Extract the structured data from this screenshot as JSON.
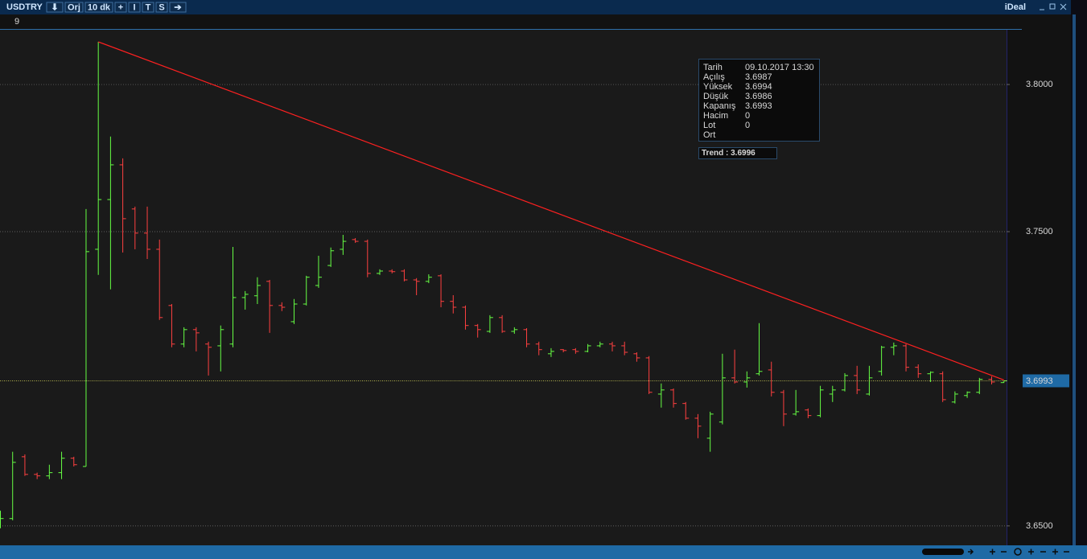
{
  "toolbar": {
    "symbol": "USDTRY",
    "buttons": [
      "⬇",
      "Orj",
      "10 dk",
      "+",
      "I",
      "T",
      "S",
      "➔"
    ],
    "broker": "iDeal"
  },
  "panel": "9",
  "tooltip": [
    {
      "label": "Tarih",
      "value": "09.10.2017 13:30"
    },
    {
      "label": "Açılış",
      "value": "3.6987"
    },
    {
      "label": "Yüksek",
      "value": "3.6994",
      "color": "#44ff44"
    },
    {
      "label": "Düşük",
      "value": "3.6986",
      "color": "#ff4040"
    },
    {
      "label": "Kapanış",
      "value": "3.6993"
    },
    {
      "label": "Hacim",
      "value": "0"
    },
    {
      "label": "Lot",
      "value": "0"
    },
    {
      "label": "Ort"
    }
  ],
  "chart_data": {
    "type": "ohlc",
    "up_color": "#66ff44",
    "down_color": "#ff4040",
    "ylim": [
      3.6434,
      3.8186
    ],
    "yticks": [
      {
        "value": 3.65,
        "label": "3.6500"
      },
      {
        "value": 3.75,
        "label": "3.7500"
      },
      {
        "value": 3.8,
        "label": "3.8000"
      }
    ],
    "grid": true,
    "open": [
      3.6511,
      3.6525,
      3.6735,
      3.6675,
      3.667,
      3.6681,
      3.673,
      3.6702,
      3.744,
      3.7609,
      3.7727,
      3.7577,
      3.7495,
      3.744,
      3.7249,
      3.7118,
      3.7167,
      3.7118,
      3.7112,
      3.7118,
      3.7276,
      3.7282,
      3.7331,
      3.7249,
      3.7194,
      3.7254,
      3.7317,
      3.7385,
      3.744,
      3.7473,
      3.7467,
      3.7358,
      3.7366,
      3.7366,
      3.7336,
      3.7331,
      3.735,
      3.7263,
      3.7243,
      3.7181,
      3.7161,
      3.7208,
      3.7161,
      3.7167,
      3.7118,
      3.7085,
      3.7099,
      3.7099,
      3.7093,
      3.7112,
      3.7118,
      3.7112,
      3.7085,
      3.7071,
      3.6948,
      3.6962,
      3.6916,
      3.6866,
      3.6798,
      3.6853,
      3.7003,
      3.6989,
      3.7017,
      3.703,
      3.6954,
      3.688,
      3.6894,
      3.6875,
      3.6948,
      3.6962,
      3.7011,
      3.6948,
      3.7025,
      3.7107,
      3.7112,
      3.7039,
      3.7017,
      3.7017,
      3.6921,
      3.6943,
      3.6954,
      3.6998,
      3.6987
    ],
    "high": [
      3.6552,
      3.6752,
      3.6743,
      3.6681,
      3.6708,
      3.6752,
      3.6735,
      3.7577,
      3.8145,
      3.7823,
      3.7749,
      3.7585,
      3.7585,
      3.7473,
      3.7254,
      3.7175,
      3.7175,
      3.7126,
      3.7181,
      3.7448,
      3.7298,
      3.7345,
      3.7336,
      3.726,
      3.7271,
      3.735,
      3.7418,
      3.7446,
      3.7489,
      3.7478,
      3.7473,
      3.7372,
      3.7372,
      3.7372,
      3.7342,
      3.7355,
      3.7355,
      3.7284,
      3.7249,
      3.7186,
      3.7216,
      3.7216,
      3.7175,
      3.7172,
      3.7126,
      3.7104,
      3.7101,
      3.7104,
      3.7118,
      3.7126,
      3.7126,
      3.7126,
      3.709,
      3.7077,
      3.6984,
      3.6967,
      3.6921,
      3.688,
      3.6888,
      3.7085,
      3.7099,
      3.7025,
      3.7189,
      3.7058,
      3.6962,
      3.6962,
      3.6899,
      3.6976,
      3.6976,
      3.7019,
      3.7044,
      3.7044,
      3.7112,
      3.7123,
      3.7118,
      3.7049,
      3.7025,
      3.7025,
      3.6957,
      3.6957,
      3.7003,
      3.7008,
      3.6994
    ],
    "low": [
      3.6492,
      3.6519,
      3.667,
      3.6659,
      3.6659,
      3.6659,
      3.6702,
      3.6702,
      3.7353,
      3.7304,
      3.7429,
      3.744,
      3.7407,
      3.72,
      3.7107,
      3.7107,
      3.7093,
      3.7011,
      3.7025,
      3.7107,
      3.7235,
      3.7254,
      3.7156,
      3.723,
      3.7186,
      3.7249,
      3.7309,
      3.738,
      3.7421,
      3.7462,
      3.7345,
      3.7353,
      3.7358,
      3.7331,
      3.7284,
      3.7325,
      3.7243,
      3.7222,
      3.7167,
      3.714,
      3.7156,
      3.7156,
      3.7153,
      3.7107,
      3.708,
      3.7074,
      3.709,
      3.7085,
      3.709,
      3.7107,
      3.7093,
      3.708,
      3.7058,
      3.6948,
      3.6902,
      3.6902,
      3.6861,
      3.6798,
      3.6752,
      3.6845,
      3.6984,
      3.697,
      3.7011,
      3.694,
      3.6839,
      3.6875,
      3.6866,
      3.6869,
      3.6921,
      3.6957,
      3.6948,
      3.6943,
      3.7011,
      3.708,
      3.7025,
      3.7003,
      3.6989,
      3.6921,
      3.6916,
      3.6935,
      3.6948,
      3.6981,
      3.6986
    ],
    "close": [
      3.6525,
      3.6716,
      3.6675,
      3.667,
      3.6681,
      3.673,
      3.6708,
      3.7432,
      3.7609,
      3.7727,
      3.7544,
      3.7495,
      3.744,
      3.7208,
      3.7118,
      3.7167,
      3.7156,
      3.7107,
      3.7167,
      3.7276,
      3.7287,
      3.7317,
      3.7249,
      3.7243,
      3.7254,
      3.7345,
      3.7345,
      3.7435,
      3.7467,
      3.7467,
      3.7358,
      3.7366,
      3.7364,
      3.7336,
      3.7331,
      3.7345,
      3.7263,
      3.7243,
      3.7181,
      3.7167,
      3.7208,
      3.7161,
      3.7167,
      3.7118,
      3.7099,
      3.7093,
      3.7096,
      3.7093,
      3.7112,
      3.7118,
      3.7112,
      3.709,
      3.7071,
      3.6954,
      3.6962,
      3.6916,
      3.6866,
      3.6839,
      3.688,
      3.7003,
      3.6989,
      3.7003,
      3.7025,
      3.6954,
      3.688,
      3.6888,
      3.6875,
      3.6962,
      3.6962,
      3.7011,
      3.6962,
      3.7003,
      3.7107,
      3.7112,
      3.7039,
      3.7017,
      3.7022,
      3.6929,
      3.6948,
      3.6954,
      3.6998,
      3.6989,
      3.6993
    ],
    "trend": {
      "start": 3.8145,
      "end": 3.6996,
      "color": "#ff2020",
      "label": "Trend  :  3.6996"
    },
    "last_price_color": "#1f6aa5"
  }
}
